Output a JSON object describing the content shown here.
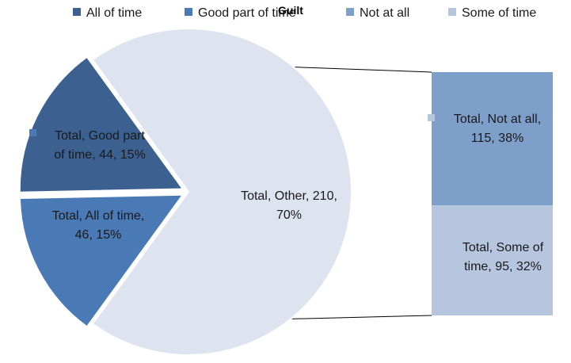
{
  "chart_data": {
    "type": "pie",
    "title": "Guilt",
    "legend_position": "top",
    "legend": [
      {
        "label": "All of time",
        "color": "#3c6191"
      },
      {
        "label": "Good part of time",
        "color": "#4a7ab6"
      },
      {
        "label": "Not at all",
        "color": "#7f9fcb"
      },
      {
        "label": "Some of time",
        "color": "#b7c6df"
      }
    ],
    "main_pie": [
      {
        "name": "All of time",
        "value": 46,
        "percent": "15%",
        "color": "#3c6191",
        "label_lines": [
          "Total, All of time,",
          "46, 15%"
        ]
      },
      {
        "name": "Good part of time",
        "value": 44,
        "percent": "15%",
        "color": "#4a7ab6",
        "label_lines": [
          "Total, Good part",
          "of time, 44, 15%"
        ]
      },
      {
        "name": "Other",
        "value": 210,
        "percent": "70%",
        "color": "#dde3ef",
        "label_lines": [
          "Total, Other, 210,",
          "70%"
        ]
      }
    ],
    "breakdown_bar": [
      {
        "name": "Not at all",
        "value": 115,
        "percent": "38%",
        "color": "#7f9fcb",
        "label_lines": [
          "Total, Not at all,",
          "115, 38%"
        ]
      },
      {
        "name": "Some of time",
        "value": 95,
        "percent": "32%",
        "color": "#b7c6df",
        "label_lines": [
          "Total, Some of",
          "time, 95, 32%"
        ]
      }
    ]
  }
}
